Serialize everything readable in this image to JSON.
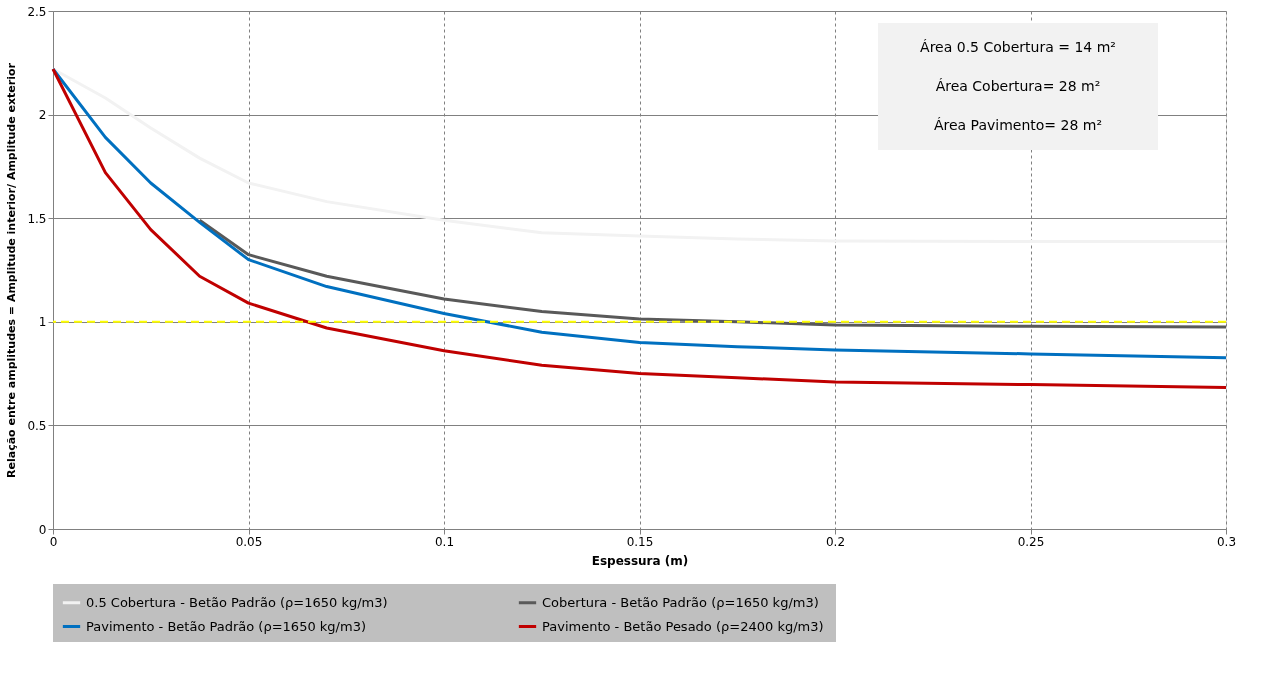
{
  "chart_data": {
    "type": "line",
    "xlabel": "Espessura (m)",
    "ylabel": "Relação entre amplitudes  = Amplitude interior/ Amplitude exterior",
    "x": [
      0,
      0.0134,
      0.025,
      0.0375,
      0.05,
      0.07,
      0.1,
      0.125,
      0.15,
      0.175,
      0.2,
      0.25,
      0.3
    ],
    "series": [
      {
        "name": "0.5 Cobertura - Betão Padrão  (ρ=1650 kg/m3)",
        "color": "#f2f2f2",
        "values": [
          2.22,
          2.08,
          1.935,
          1.79,
          1.67,
          1.58,
          1.49,
          1.43,
          1.414,
          1.4,
          1.39,
          1.387,
          1.387
        ]
      },
      {
        "name": "Cobertura - Betão Padrão  (ρ=1650 kg/m3)",
        "color": "#595959",
        "values": [
          null,
          null,
          null,
          1.49,
          1.324,
          1.22,
          1.11,
          1.05,
          1.014,
          1.0,
          0.985,
          0.978,
          0.975
        ]
      },
      {
        "name": "Pavimento - Betão Padrão  (ρ=1650 kg/m3)",
        "color": "#0070c0",
        "values": [
          2.22,
          1.89,
          1.67,
          1.48,
          1.3,
          1.17,
          1.04,
          0.95,
          0.9,
          0.88,
          0.864,
          0.845,
          0.827
        ]
      },
      {
        "name": "Pavimento - Betão Pesado  (ρ=2400 kg/m3)",
        "color": "#c00000",
        "values": [
          2.22,
          1.72,
          1.445,
          1.22,
          1.09,
          0.97,
          0.86,
          0.79,
          0.75,
          0.73,
          0.71,
          0.697,
          0.683
        ]
      }
    ],
    "xlim": [
      0,
      0.3
    ],
    "xticks": [
      0,
      0.05,
      0.1,
      0.15,
      0.2,
      0.25,
      0.3
    ],
    "ylim": [
      0,
      2.5
    ],
    "yticks": [
      0,
      0.5,
      1,
      1.5,
      2,
      2.5
    ],
    "ref_lines": [
      {
        "axis": "y",
        "value": 1,
        "color": "#ffff00",
        "line_style": "dashed"
      }
    ],
    "annotations": [
      "Área 0.5 Cobertura = 14 m²",
      "Área Cobertura= 28 m²",
      "Área Pavimento= 28 m²"
    ],
    "grid": true,
    "legend": "bottom",
    "line_style": "solid",
    "marker": "none"
  }
}
